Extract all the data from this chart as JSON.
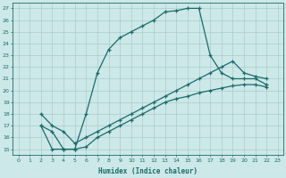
{
  "bg_color": "#cce8e8",
  "line_color": "#1a6b6b",
  "grid_color": "#aacccc",
  "xlabel": "Humidex (Indice chaleur)",
  "xlim": [
    -0.5,
    23.5
  ],
  "ylim": [
    14.5,
    27.5
  ],
  "xticks": [
    0,
    1,
    2,
    3,
    4,
    5,
    6,
    7,
    8,
    9,
    10,
    11,
    12,
    13,
    14,
    15,
    16,
    17,
    18,
    19,
    20,
    21,
    22,
    23
  ],
  "yticks": [
    15,
    16,
    17,
    18,
    19,
    20,
    21,
    22,
    23,
    24,
    25,
    26,
    27
  ],
  "line1_x": [
    2,
    3,
    4,
    5,
    6,
    7,
    8,
    9,
    10,
    11,
    12,
    13,
    14,
    15,
    16,
    17,
    18,
    19,
    20,
    21,
    22
  ],
  "line1_y": [
    17.0,
    15.0,
    15.0,
    15.0,
    18.0,
    21.5,
    23.5,
    24.5,
    25.0,
    25.5,
    26.0,
    26.7,
    26.8,
    27.0,
    27.0,
    23.0,
    21.5,
    21.0,
    21.0,
    21.0,
    20.5
  ],
  "line2_x": [
    2,
    3,
    4,
    5,
    6,
    7,
    8,
    9,
    10,
    11,
    12,
    13,
    14,
    15,
    16,
    17,
    18,
    19,
    20,
    21,
    22
  ],
  "line2_y": [
    17.0,
    16.5,
    15.0,
    15.0,
    15.2,
    16.0,
    16.5,
    17.0,
    17.5,
    18.0,
    18.5,
    19.0,
    19.3,
    19.5,
    19.8,
    20.0,
    20.2,
    20.4,
    20.5,
    20.5,
    20.3
  ],
  "line3_x": [
    2,
    3,
    4,
    5,
    6,
    7,
    8,
    9,
    10,
    11,
    12,
    13,
    14,
    15,
    16,
    17,
    18,
    19,
    20,
    21,
    22
  ],
  "line3_y": [
    18.0,
    17.0,
    16.5,
    15.5,
    16.0,
    16.5,
    17.0,
    17.5,
    18.0,
    18.5,
    19.0,
    19.5,
    20.0,
    20.5,
    21.0,
    21.5,
    22.0,
    22.5,
    21.5,
    21.2,
    21.0
  ],
  "marker": "+",
  "markersize": 3,
  "linewidth": 0.9
}
